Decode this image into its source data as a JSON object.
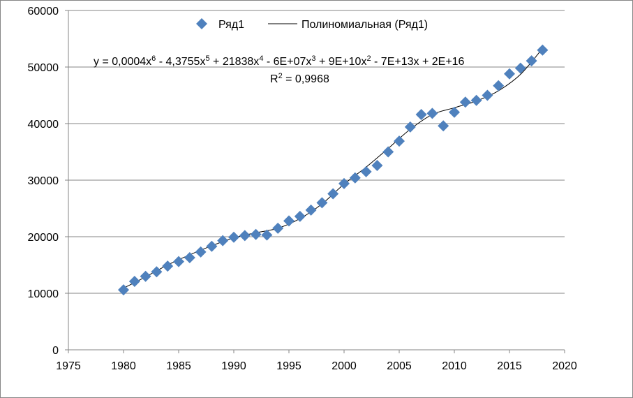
{
  "chart_data": {
    "type": "scatter",
    "title": "",
    "xlabel": "",
    "ylabel": "",
    "xlim": [
      1975,
      2020
    ],
    "ylim": [
      0,
      60000
    ],
    "x_ticks": [
      1975,
      1980,
      1985,
      1990,
      1995,
      2000,
      2005,
      2010,
      2015,
      2020
    ],
    "y_ticks": [
      0,
      10000,
      20000,
      30000,
      40000,
      50000,
      60000
    ],
    "grid": "horizontal",
    "legend_position": "top",
    "marker_color": "#4F81BD",
    "trend_color": "#000000",
    "series": [
      {
        "name": "Ряд1",
        "marker": "diamond",
        "x": [
          1980,
          1981,
          1982,
          1983,
          1984,
          1985,
          1986,
          1987,
          1988,
          1989,
          1990,
          1991,
          1992,
          1993,
          1994,
          1995,
          1996,
          1997,
          1998,
          1999,
          2000,
          2001,
          2002,
          2003,
          2004,
          2005,
          2006,
          2007,
          2008,
          2009,
          2010,
          2011,
          2012,
          2013,
          2014,
          2015,
          2016,
          2017,
          2018
        ],
        "y": [
          10600,
          12100,
          13000,
          13800,
          14800,
          15600,
          16300,
          17300,
          18300,
          19300,
          19900,
          20200,
          20400,
          20300,
          21500,
          22800,
          23600,
          24700,
          26000,
          27600,
          29400,
          30400,
          31500,
          32600,
          35000,
          36900,
          39400,
          41600,
          41800,
          39600,
          42000,
          43800,
          44100,
          45000,
          46700,
          48800,
          49800,
          51100,
          53000
        ]
      }
    ],
    "trendline": {
      "name": "Полиномиальная (Ряд1)",
      "x": [
        1980,
        1982,
        1984,
        1986,
        1988,
        1990,
        1992,
        1994,
        1996,
        1998,
        2000,
        2002,
        2004,
        2006,
        2008,
        2010,
        2012,
        2014,
        2016,
        2018
      ],
      "y": [
        10900,
        12900,
        15000,
        16800,
        18400,
        19800,
        20700,
        21500,
        23200,
        25800,
        29300,
        32300,
        35600,
        39000,
        41600,
        42800,
        44000,
        45800,
        48700,
        53300
      ]
    },
    "annotations": {
      "equation_parts": [
        "y = 0,0004x",
        "6",
        " - 4,3755x",
        "5",
        " + 21838x",
        "4",
        " - 6E+07x",
        "3",
        " + 9E+10x",
        "2",
        " - 7E+13x + 2E+16"
      ],
      "r_squared_parts": [
        "R",
        "2",
        " = 0,9968"
      ]
    }
  }
}
